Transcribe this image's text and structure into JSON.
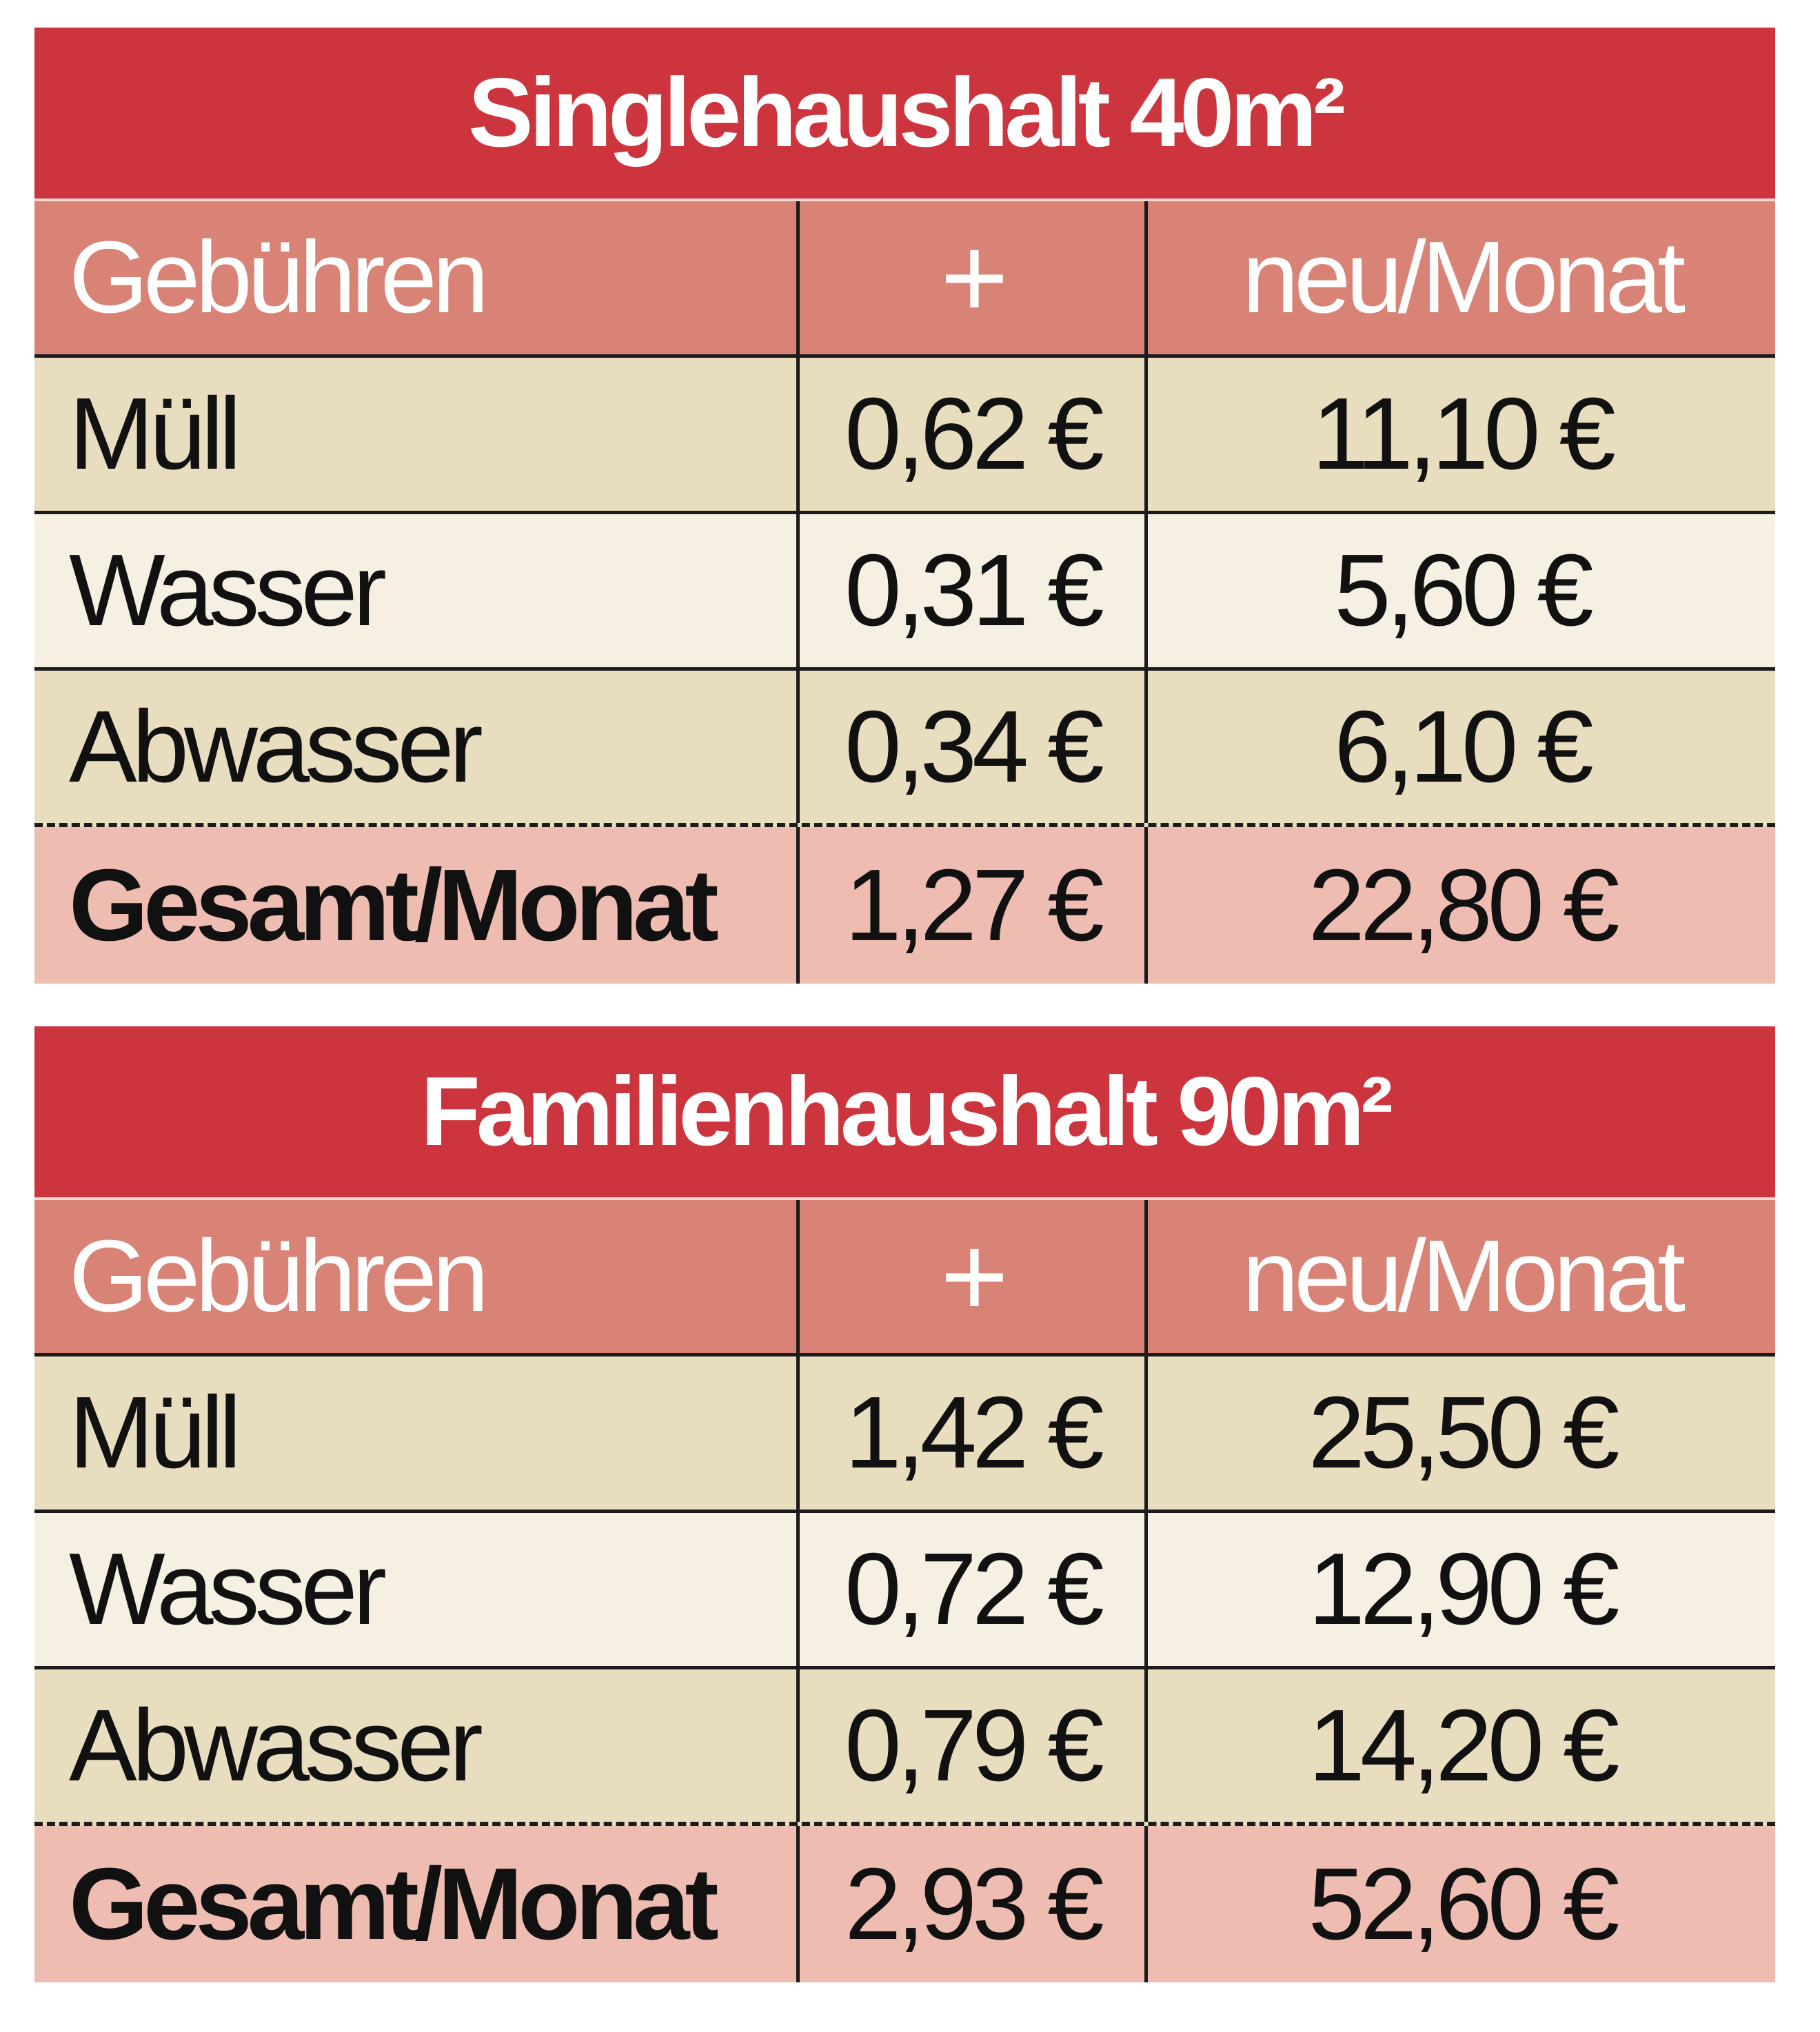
{
  "tables": [
    {
      "title": "Singlehaushalt 40m²",
      "header": {
        "col1": "Gebühren",
        "col2": "+",
        "col3": "neu/Monat"
      },
      "rows": [
        {
          "label": "Müll",
          "plus": "0,62 €",
          "new": "11,10 €"
        },
        {
          "label": "Wasser",
          "plus": "0,31 €",
          "new": "5,60 €"
        },
        {
          "label": "Abwasser",
          "plus": "0,34 €",
          "new": "6,10 €"
        }
      ],
      "total": {
        "label": "Gesamt/Monat",
        "plus": "1,27 €",
        "new": "22,80 €"
      }
    },
    {
      "title": "Familienhaushalt 90m²",
      "header": {
        "col1": "Gebühren",
        "col2": "+",
        "col3": "neu/Monat"
      },
      "rows": [
        {
          "label": "Müll",
          "plus": "1,42 €",
          "new": "25,50 €"
        },
        {
          "label": "Wasser",
          "plus": "0,72 €",
          "new": "12,90 €"
        },
        {
          "label": "Abwasser",
          "plus": "0,79 €",
          "new": "14,20 €"
        }
      ],
      "total": {
        "label": "Gesamt/Monat",
        "plus": "2,93 €",
        "new": "52,60 €"
      }
    }
  ],
  "colors": {
    "title_bar": "#cc353e",
    "header_row": "#d98377",
    "row_beige": "#e9ddbf",
    "row_cream": "#f6f0e3",
    "total_row": "#eebcb1"
  }
}
